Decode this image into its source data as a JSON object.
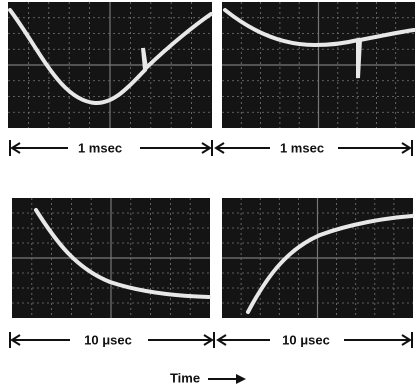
{
  "panels": [
    {
      "label": "1 msec"
    },
    {
      "label": "1 msec"
    },
    {
      "label": "10 μsec"
    },
    {
      "label": "10 μsec"
    }
  ],
  "axis_label": "Time"
}
